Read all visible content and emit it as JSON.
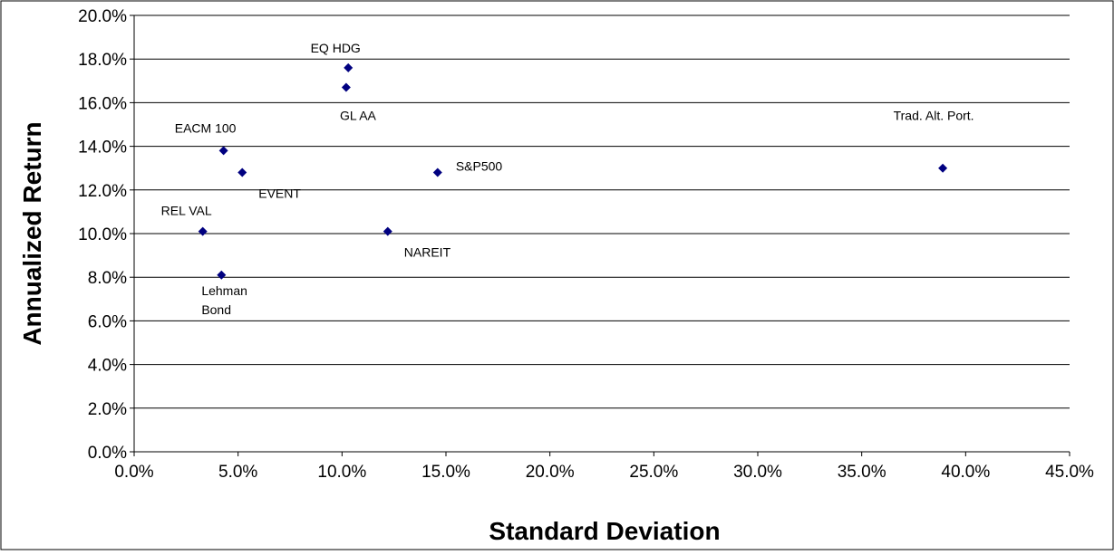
{
  "chart_data": {
    "type": "scatter",
    "xlabel": "Standard Deviation",
    "ylabel": "Annualized Return",
    "xlim": [
      0,
      45
    ],
    "ylim": [
      0,
      20
    ],
    "x_ticks": [
      "0.0%",
      "5.0%",
      "10.0%",
      "15.0%",
      "20.0%",
      "25.0%",
      "30.0%",
      "35.0%",
      "40.0%",
      "45.0%"
    ],
    "y_ticks": [
      "0.0%",
      "2.0%",
      "4.0%",
      "6.0%",
      "8.0%",
      "10.0%",
      "12.0%",
      "14.0%",
      "16.0%",
      "18.0%",
      "20.0%"
    ],
    "grid": "horizontal",
    "marker_color": "#000080",
    "points": [
      {
        "label": "EQ HDG",
        "x": 10.3,
        "y": 17.6,
        "label_pos": "above"
      },
      {
        "label": "GL AA",
        "x": 10.2,
        "y": 16.7,
        "label_pos": "below"
      },
      {
        "label": "EACM 100",
        "x": 4.3,
        "y": 13.8,
        "label_pos": "above"
      },
      {
        "label": "EVENT",
        "x": 5.2,
        "y": 12.8,
        "label_pos": "right-below"
      },
      {
        "label": "S&P500",
        "x": 14.6,
        "y": 12.8,
        "label_pos": "right-above"
      },
      {
        "label": "Trad. Alt. Port.",
        "x": 38.9,
        "y": 13.0,
        "label_pos": "above-left"
      },
      {
        "label": "REL VAL",
        "x": 3.3,
        "y": 10.1,
        "label_pos": "above"
      },
      {
        "label": "NAREIT",
        "x": 12.2,
        "y": 10.1,
        "label_pos": "right-below"
      },
      {
        "label": "Lehman Bond",
        "x": 4.2,
        "y": 8.1,
        "label_pos": "below"
      }
    ]
  }
}
